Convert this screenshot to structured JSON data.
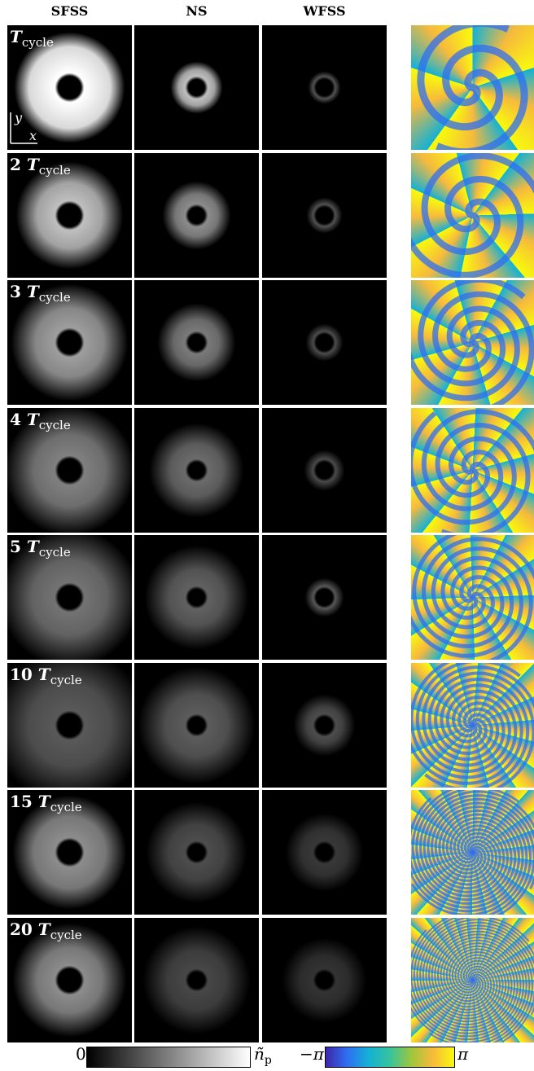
{
  "columns": [
    "SFSS",
    "NS",
    "WFSS"
  ],
  "rows": [
    {
      "n": "",
      "sub": "cycle"
    },
    {
      "n": "2",
      "sub": "cycle"
    },
    {
      "n": "3",
      "sub": "cycle"
    },
    {
      "n": "4",
      "sub": "cycle"
    },
    {
      "n": "5",
      "sub": "cycle"
    },
    {
      "n": "10",
      "sub": "cycle"
    },
    {
      "n": "15",
      "sub": "cycle"
    },
    {
      "n": "20",
      "sub": "cycle"
    }
  ],
  "time_symbol": "T",
  "axes": {
    "y": "y",
    "x": "x"
  },
  "colorbar_density": {
    "min": "0",
    "max": "ñ",
    "max_sub": "p"
  },
  "colorbar_phase": {
    "min": "−π",
    "max": "π",
    "colors": [
      "#3e26a8",
      "#2f6ef2",
      "#13b1d6",
      "#36c39d",
      "#9dc63d",
      "#f7ba3c",
      "#f8fa0d"
    ]
  }
}
